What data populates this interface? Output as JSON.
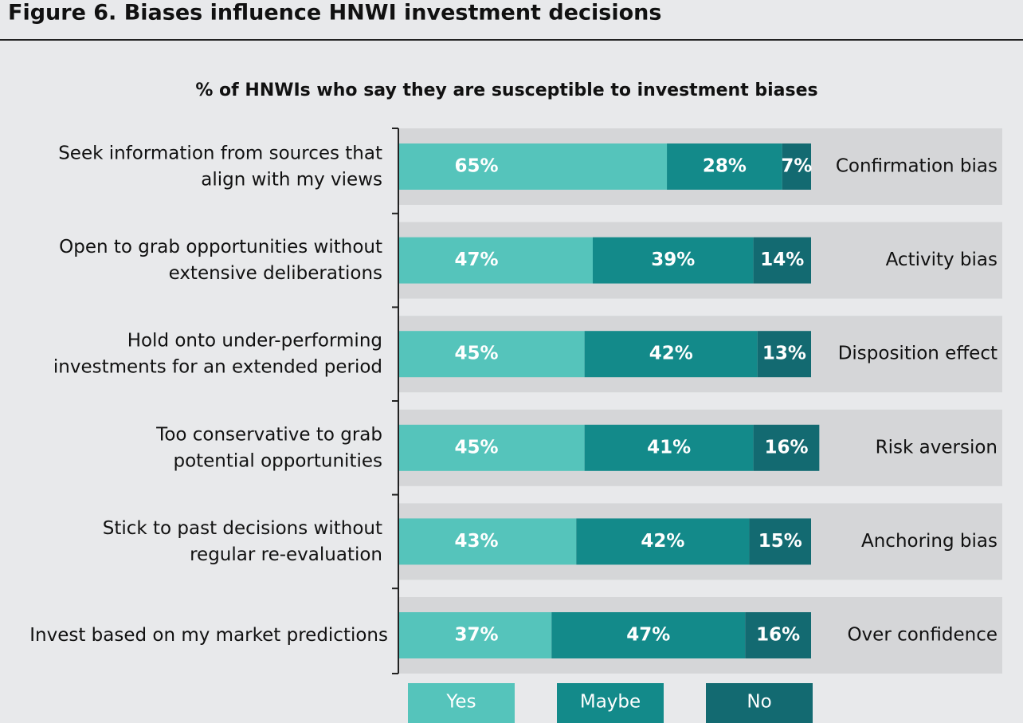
{
  "chart_data": {
    "type": "stacked-bar-horizontal",
    "figure_title": "Figure 6. Biases influence HNWI investment decisions",
    "title": "% of HNWIs who say they are susceptible to investment biases",
    "categories": [
      "Seek information from sources that\nalign with my views",
      "Open to grab opportunities without\nextensive deliberations",
      "Hold onto under-performing\ninvestments for an extended period",
      "Too conservative to grab\npotential opportunities",
      "Stick to past decisions without\nregular re-evaluation",
      "Invest based on my market predictions"
    ],
    "category_notes": [
      "Confirmation bias",
      "Activity bias",
      "Disposition effect",
      "Risk aversion",
      "Anchoring bias",
      "Over confidence"
    ],
    "xlim": [
      0,
      100
    ],
    "series": [
      {
        "name": "Yes",
        "color": "#55c4bb",
        "values": [
          65,
          47,
          45,
          45,
          43,
          37
        ],
        "value_labels": [
          "65%",
          "47%",
          "45%",
          "45%",
          "43%",
          "37%"
        ]
      },
      {
        "name": "Maybe",
        "color": "#138a8a",
        "values": [
          28,
          39,
          42,
          41,
          42,
          47
        ],
        "value_labels": [
          "28%",
          "39%",
          "42%",
          "41%",
          "42%",
          "47%"
        ]
      },
      {
        "name": "No",
        "color": "#136a71",
        "values": [
          7,
          14,
          13,
          16,
          15,
          16
        ],
        "value_labels": [
          "7%",
          "14%",
          "13%",
          "16%",
          "15%",
          "16%"
        ]
      }
    ]
  }
}
